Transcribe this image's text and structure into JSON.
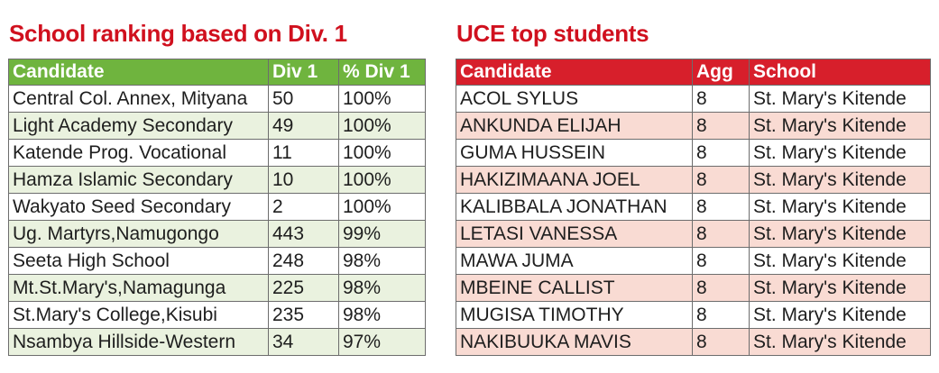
{
  "left": {
    "title": "School ranking based on Div. 1",
    "headers": [
      "Candidate",
      "Div 1",
      "% Div 1"
    ],
    "rows": [
      [
        "Central Col. Annex, Mityana",
        "50",
        "100%"
      ],
      [
        "Light Academy Secondary",
        "49",
        "100%"
      ],
      [
        "Katende Prog. Vocational",
        "11",
        "100%"
      ],
      [
        "Hamza Islamic Secondary",
        "10",
        "100%"
      ],
      [
        "Wakyato Seed Secondary",
        "2",
        "100%"
      ],
      [
        "Ug. Martyrs,Namugongo",
        "443",
        "99%"
      ],
      [
        "Seeta High School",
        "248",
        "98%"
      ],
      [
        "Mt.St.Mary's,Namagunga",
        "225",
        "98%"
      ],
      [
        "St.Mary's College,Kisubi",
        "235",
        "98%"
      ],
      [
        "Nsambya Hillside-Western",
        "34",
        "97%"
      ]
    ],
    "colors": {
      "header_bg": "#6fb43e",
      "alt_row_bg": "#eaf2df"
    }
  },
  "right": {
    "title": "UCE top students",
    "headers": [
      "Candidate",
      "Agg",
      "School"
    ],
    "rows": [
      [
        "ACOL SYLUS",
        "8",
        "St. Mary's Kitende"
      ],
      [
        "ANKUNDA ELIJAH",
        "8",
        "St. Mary's Kitende"
      ],
      [
        "GUMA HUSSEIN",
        "8",
        "St. Mary's Kitende"
      ],
      [
        "HAKIZIMAANA JOEL",
        "8",
        "St. Mary's Kitende"
      ],
      [
        "KALIBBALA JONATHAN",
        "8",
        "St. Mary's Kitende"
      ],
      [
        "LETASI VANESSA",
        "8",
        "St. Mary's Kitende"
      ],
      [
        "MAWA JUMA",
        "8",
        "St. Mary's Kitende"
      ],
      [
        "MBEINE CALLIST",
        "8",
        "St. Mary's Kitende"
      ],
      [
        "MUGISA TIMOTHY",
        "8",
        "St. Mary's Kitende"
      ],
      [
        "NAKIBUUKA  MAVIS",
        "8",
        "St. Mary's Kitende"
      ]
    ],
    "colors": {
      "header_bg": "#d71f2b",
      "alt_row_bg": "#f9dbd3"
    }
  },
  "title_color": "#d0101e"
}
